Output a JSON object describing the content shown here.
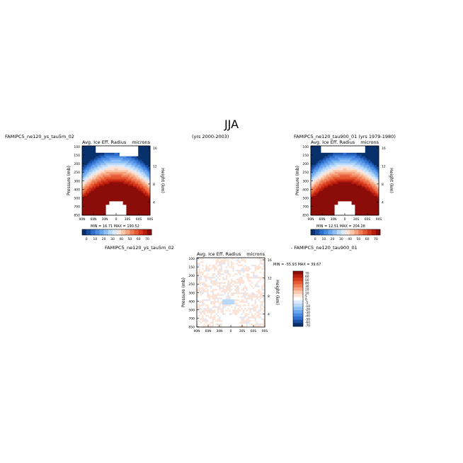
{
  "figure": {
    "title": "JJA",
    "case_left": "FAMIPC5_ne120_ys_tau5m_02",
    "case_right": "FAMIPC5_ne120_tau900_01 (yrs 1979-1980)",
    "years_left": "(yrs 2000-2003)",
    "diff_left": "FAMIPC5_ne120_ys_tau5m_02",
    "diff_right": "- FAMIPC5_ne120_tau900_01"
  },
  "colors": {
    "background": "#ffffff",
    "missing": "#ffffff",
    "frame": "#000000"
  },
  "chart_data": [
    {
      "type": "heatmap",
      "panel": "case1",
      "title": "Avg. Ice Eff. Radius",
      "units": "microns",
      "ylabel": "Pressure (mb)",
      "ylabel_right": "Height (km)",
      "x_ticks": [
        "90N",
        "60N",
        "30N",
        "0",
        "30S",
        "60S",
        "90S"
      ],
      "y_ticks": [
        "100",
        "150",
        "200",
        "250",
        "300",
        "400",
        "500",
        "700",
        "850"
      ],
      "y_ticks_right": [
        "16",
        "12",
        "8",
        "4"
      ],
      "min_max": "MIN = 16.71  MAX = 190.52",
      "colorbar": [
        "0",
        "10",
        "20",
        "30",
        "40",
        "50",
        "60",
        "70"
      ],
      "levels": [
        "#08306b",
        "#1a4ea0",
        "#2f6fcf",
        "#4a8ae0",
        "#6aa6ee",
        "#8fc0f5",
        "#b9d9f9",
        "#dce9fb",
        "#fbe3d6",
        "#fbc7ad",
        "#f7a37f",
        "#ef7e56",
        "#e55a35",
        "#d4381c",
        "#b81d0e",
        "#8b0c08"
      ]
    },
    {
      "type": "heatmap",
      "panel": "case2",
      "title": "Avg. Ice Eff. Radius",
      "units": "microns",
      "ylabel": "Pressure (mb)",
      "ylabel_right": "Height (km)",
      "x_ticks": [
        "90N",
        "60N",
        "30N",
        "0",
        "30S",
        "60S",
        "90S"
      ],
      "y_ticks": [
        "100",
        "150",
        "200",
        "250",
        "300",
        "400",
        "500",
        "700",
        "850"
      ],
      "y_ticks_right": [
        "16",
        "12",
        "8",
        "4"
      ],
      "min_max": "MIN = 12.51  MAX = 204.28",
      "colorbar": [
        "0",
        "10",
        "20",
        "30",
        "40",
        "50",
        "60",
        "70"
      ]
    },
    {
      "type": "heatmap",
      "panel": "difference",
      "title": "Avg. Ice Eff. Radius",
      "units": "microns",
      "ylabel": "Pressure (mb)",
      "ylabel_right": "Height (km)",
      "x_ticks": [
        "90N",
        "60N",
        "30N",
        "0",
        "30S",
        "60S",
        "90S"
      ],
      "y_ticks": [
        "100",
        "150",
        "200",
        "250",
        "300",
        "400",
        "500",
        "700",
        "850"
      ],
      "y_ticks_right": [
        "16",
        "12",
        "8",
        "4"
      ],
      "min_max": "MIN = -55.93  MAX = 39.67",
      "colorbar": [
        "70",
        "60",
        "50",
        "40",
        "30",
        "20",
        "10",
        "5",
        "0",
        "-5",
        "-10",
        "-20",
        "-30",
        "-40",
        "-50",
        "-60",
        "-70"
      ],
      "levels": [
        "#8b0c08",
        "#b81d0e",
        "#d4381c",
        "#e55a35",
        "#ef7e56",
        "#f7a37f",
        "#fbc7ad",
        "#fbe3d6",
        "#ffffff",
        "#dce9fb",
        "#b9d9f9",
        "#8fc0f5",
        "#6aa6ee",
        "#4a8ae0",
        "#2f6fcf",
        "#1a4ea0",
        "#08306b"
      ]
    }
  ]
}
